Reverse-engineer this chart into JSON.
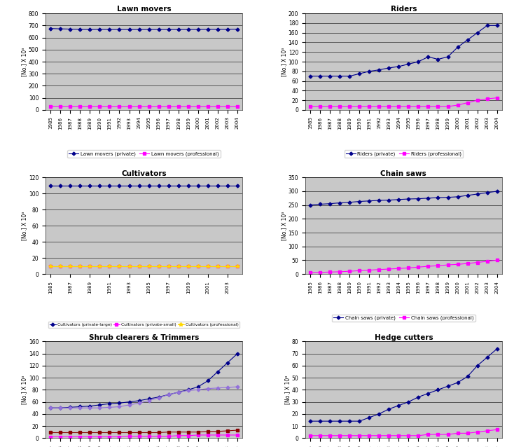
{
  "years": [
    1985,
    1986,
    1987,
    1988,
    1989,
    1990,
    1991,
    1992,
    1993,
    1994,
    1995,
    1996,
    1997,
    1998,
    1999,
    2000,
    2001,
    2002,
    2003,
    2004
  ],
  "lawn_movers_private": [
    675,
    672,
    670,
    668,
    667,
    668,
    667,
    667,
    667,
    667,
    667,
    667,
    667,
    667,
    667,
    667,
    668,
    668,
    668,
    670
  ],
  "lawn_movers_professional": [
    30,
    28,
    28,
    28,
    28,
    28,
    27,
    27,
    27,
    27,
    27,
    27,
    27,
    27,
    27,
    27,
    27,
    27,
    27,
    27
  ],
  "riders_private": [
    70,
    70,
    70,
    70,
    70,
    75,
    80,
    83,
    87,
    90,
    95,
    100,
    110,
    105,
    110,
    130,
    145,
    160,
    175,
    175
  ],
  "riders_professional": [
    7,
    7,
    7,
    7,
    7,
    7,
    7,
    7,
    7,
    7,
    7,
    7,
    7,
    7,
    7,
    10,
    15,
    20,
    23,
    25
  ],
  "cultivators_large": [
    110,
    110,
    110,
    110,
    110,
    110,
    110,
    110,
    110,
    110,
    110,
    110,
    110,
    110,
    110,
    110,
    110,
    110,
    110,
    110
  ],
  "cultivators_small": [
    10,
    10,
    10,
    10,
    10,
    10,
    10,
    10,
    10,
    10,
    10,
    10,
    10,
    10,
    10,
    10,
    10,
    10,
    10,
    10
  ],
  "cultivators_professional": [
    10,
    10,
    10,
    10,
    10,
    10,
    10,
    10,
    10,
    10,
    10,
    10,
    10,
    10,
    10,
    10,
    10,
    10,
    10,
    10
  ],
  "chainsaws_private": [
    250,
    253,
    255,
    258,
    260,
    263,
    265,
    267,
    268,
    270,
    272,
    273,
    275,
    277,
    278,
    280,
    285,
    290,
    295,
    300
  ],
  "chainsaws_professional": [
    5,
    6,
    7,
    8,
    10,
    12,
    14,
    16,
    18,
    20,
    22,
    25,
    28,
    30,
    33,
    35,
    38,
    42,
    46,
    50
  ],
  "shrub_clearers_private": [
    50,
    50,
    51,
    52,
    53,
    55,
    57,
    58,
    60,
    62,
    65,
    68,
    72,
    76,
    80,
    85,
    95,
    110,
    125,
    140
  ],
  "shrub_clearers_professional": [
    2,
    2,
    2,
    2,
    2,
    2,
    2,
    2,
    3,
    3,
    3,
    3,
    3,
    4,
    4,
    5,
    5,
    5,
    5,
    5
  ],
  "trimmers_private": [
    50,
    50,
    50,
    50,
    50,
    50,
    51,
    52,
    55,
    58,
    62,
    67,
    72,
    76,
    79,
    80,
    82,
    83,
    84,
    85
  ],
  "trimmers_professional": [
    9,
    9,
    9,
    9,
    9,
    9,
    9,
    9,
    9,
    9,
    9,
    9,
    10,
    10,
    10,
    10,
    11,
    11,
    12,
    13
  ],
  "hedge_cutters_private": [
    14,
    14,
    14,
    14,
    14,
    14,
    17,
    20,
    24,
    27,
    30,
    34,
    37,
    40,
    43,
    46,
    51,
    60,
    67,
    74
  ],
  "hedge_cutters_professional": [
    2,
    2,
    2,
    2,
    2,
    2,
    2,
    2,
    2,
    2,
    2,
    2,
    3,
    3,
    3,
    4,
    4,
    5,
    6,
    7
  ],
  "colors": {
    "dark_blue": "#00008B",
    "magenta": "#FF00FF",
    "yellow": "#FFD700",
    "dark_red": "#8B0000",
    "purple": "#9370DB"
  },
  "bg_color": "#C8C8C8"
}
